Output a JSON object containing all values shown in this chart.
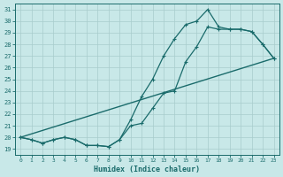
{
  "xlabel": "Humidex (Indice chaleur)",
  "bg_color": "#c8e8e8",
  "grid_color": "#a8cccc",
  "line_color": "#1a6b6b",
  "xlim": [
    -0.5,
    23.5
  ],
  "ylim": [
    18.5,
    31.5
  ],
  "yticks": [
    19,
    20,
    21,
    22,
    23,
    24,
    25,
    26,
    27,
    28,
    29,
    30,
    31
  ],
  "xticks": [
    0,
    1,
    2,
    3,
    4,
    5,
    6,
    7,
    8,
    9,
    10,
    11,
    12,
    13,
    14,
    15,
    16,
    17,
    18,
    19,
    20,
    21,
    22,
    23
  ],
  "series": [
    {
      "x": [
        0,
        1,
        2,
        3,
        4,
        5,
        6,
        7,
        8,
        9,
        10,
        11,
        12,
        13,
        14,
        15,
        16,
        17,
        18,
        19,
        20,
        21,
        22,
        23
      ],
      "y": [
        20.0,
        19.8,
        19.5,
        19.8,
        20.0,
        19.8,
        19.3,
        19.3,
        19.2,
        19.8,
        21.5,
        23.5,
        25.0,
        27.0,
        28.5,
        29.7,
        30.0,
        31.0,
        29.5,
        29.3,
        29.3,
        29.1,
        28.0,
        26.8
      ],
      "marker": "+",
      "markersize": 3.5,
      "linewidth": 0.9
    },
    {
      "x": [
        0,
        1,
        2,
        3,
        4,
        5,
        6,
        7,
        8,
        9,
        10,
        11,
        12,
        13,
        14,
        15,
        16,
        17,
        18,
        19,
        20,
        21,
        22,
        23
      ],
      "y": [
        20.0,
        19.8,
        19.5,
        19.8,
        20.0,
        19.8,
        19.3,
        19.3,
        19.2,
        19.8,
        21.0,
        21.2,
        22.5,
        23.8,
        24.0,
        26.5,
        27.8,
        29.5,
        29.3,
        29.3,
        29.3,
        29.1,
        28.0,
        26.8
      ],
      "marker": "+",
      "markersize": 3.5,
      "linewidth": 0.9
    },
    {
      "x": [
        0,
        23
      ],
      "y": [
        20.0,
        26.8
      ],
      "marker": null,
      "markersize": 0,
      "linewidth": 1.0
    }
  ]
}
